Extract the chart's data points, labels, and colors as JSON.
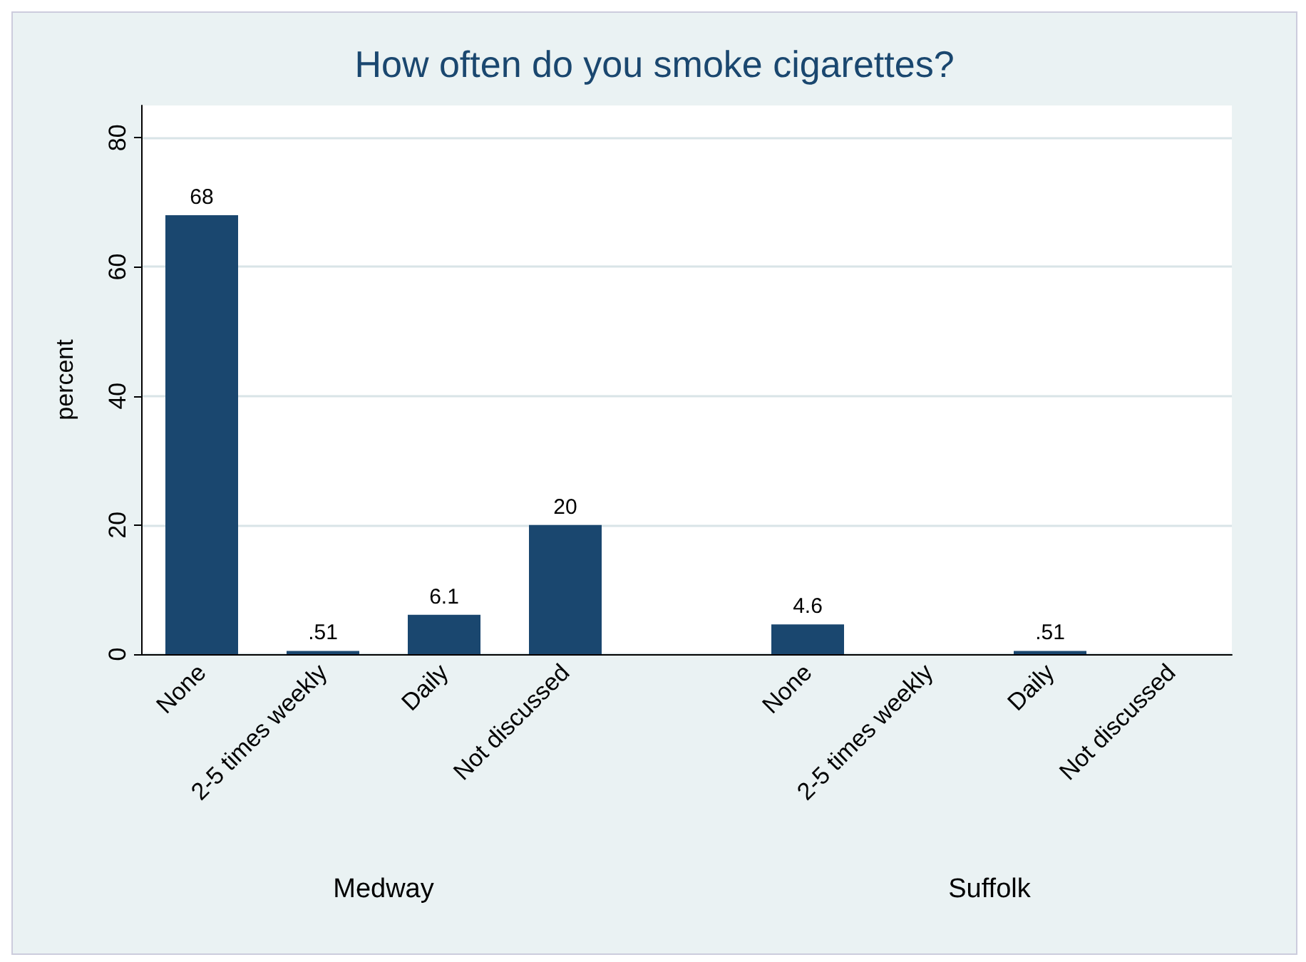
{
  "chart_data": {
    "type": "bar",
    "title": "How often do you smoke cigarettes?",
    "ylabel": "percent",
    "categories": [
      "None",
      "2-5 times weekly",
      "Daily",
      "Not discussed",
      null,
      "None",
      "2-5 times weekly",
      "Daily",
      "Not discussed"
    ],
    "values": [
      68,
      0.51,
      6.1,
      20,
      null,
      4.6,
      0,
      0.51,
      0
    ],
    "value_labels": [
      "68",
      ".51",
      "6.1",
      "20",
      null,
      "4.6",
      null,
      ".51",
      null
    ],
    "color": "#1a476f",
    "ylim": [
      0,
      85
    ],
    "yticks": [
      0,
      20,
      40,
      60,
      80
    ],
    "grid": "y",
    "annotations": [
      "Medway",
      "Suffolk"
    ]
  }
}
